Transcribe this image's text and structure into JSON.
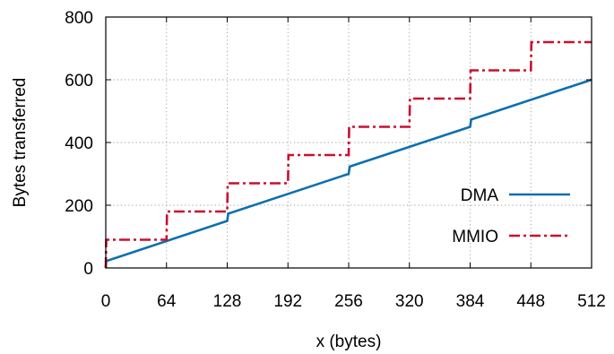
{
  "chart_data": {
    "type": "line",
    "xlabel": "x (bytes)",
    "ylabel": "Bytes transferred",
    "xlim": [
      0,
      512
    ],
    "ylim": [
      0,
      800
    ],
    "xticks": [
      0,
      64,
      128,
      192,
      256,
      320,
      384,
      448,
      512
    ],
    "yticks": [
      0,
      200,
      400,
      600,
      800
    ],
    "grid": true,
    "legend_position": "bottom-right",
    "series": [
      {
        "name": "DMA",
        "color": "#0e6fae",
        "style": "solid",
        "points": [
          [
            0,
            0
          ],
          [
            0.5,
            22
          ],
          [
            128,
            150
          ],
          [
            129,
            173
          ],
          [
            256,
            300
          ],
          [
            257,
            323
          ],
          [
            384,
            450
          ],
          [
            385,
            473
          ],
          [
            512,
            600
          ]
        ]
      },
      {
        "name": "MMIO",
        "color": "#c8102e",
        "style": "dash-dot",
        "points": [
          [
            0,
            0
          ],
          [
            0.5,
            90
          ],
          [
            64,
            90
          ],
          [
            64.5,
            180
          ],
          [
            128,
            180
          ],
          [
            128.5,
            270
          ],
          [
            192,
            270
          ],
          [
            192.5,
            360
          ],
          [
            256,
            360
          ],
          [
            256.5,
            450
          ],
          [
            320,
            450
          ],
          [
            320.5,
            540
          ],
          [
            384,
            540
          ],
          [
            384.5,
            630
          ],
          [
            448,
            630
          ],
          [
            448.5,
            720
          ],
          [
            512,
            720
          ]
        ]
      }
    ]
  }
}
